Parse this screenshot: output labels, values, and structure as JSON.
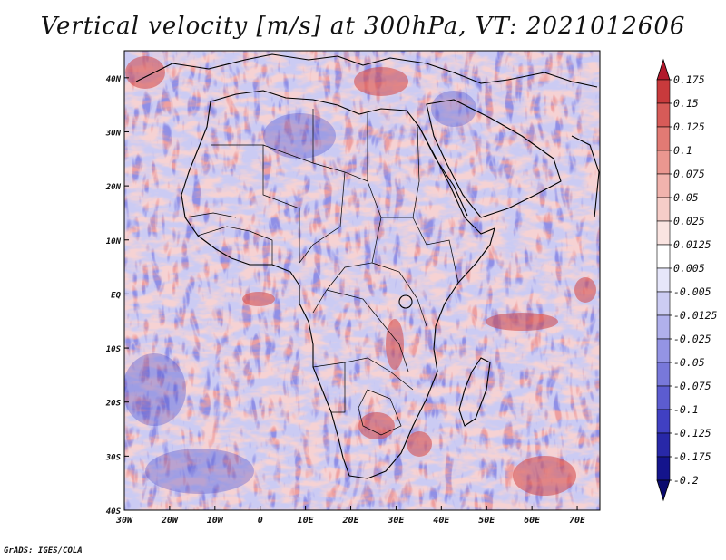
{
  "title": "Vertical velocity [m/s] at 300hPa, VT: 2021012606",
  "credit": "GrADS: IGES/COLA",
  "map": {
    "lon_range": [
      -30,
      75
    ],
    "lat_range": [
      -40,
      45
    ],
    "lon_ticks": [
      "30W",
      "20W",
      "10W",
      "0",
      "10E",
      "20E",
      "30E",
      "40E",
      "50E",
      "60E",
      "70E"
    ],
    "lat_ticks": [
      "40N",
      "30N",
      "20N",
      "10N",
      "EQ",
      "10S",
      "20S",
      "30S",
      "40S"
    ],
    "field": "Vertical velocity",
    "units": "m/s",
    "level": "300hPa",
    "valid_time": "2021012606"
  },
  "colorbar": {
    "labels": [
      "0.175",
      "0.15",
      "0.125",
      "0.1",
      "0.075",
      "0.05",
      "0.025",
      "0.0125",
      "0.005",
      "-0.005",
      "-0.0125",
      "-0.025",
      "-0.05",
      "-0.075",
      "-0.1",
      "-0.125",
      "-0.175",
      "-0.2"
    ],
    "colors": [
      "#b2182b",
      "#c83a3c",
      "#d75b58",
      "#e27a74",
      "#ea9790",
      "#f1b3ad",
      "#f6cdc8",
      "#fae4e1",
      "#ffffff",
      "#e6e6fa",
      "#ccccf3",
      "#b0b0ec",
      "#9494e4",
      "#7878da",
      "#5c5cd0",
      "#4040c2",
      "#2828a8",
      "#14148c",
      "#0a0a6e"
    ]
  }
}
